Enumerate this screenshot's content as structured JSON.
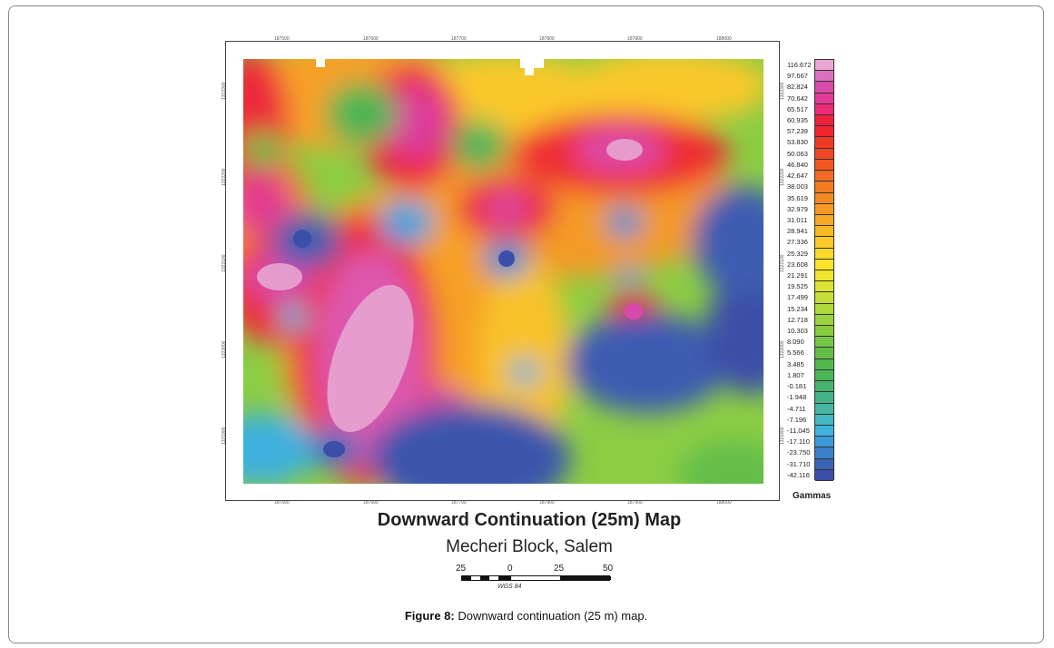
{
  "figure": {
    "title": "Downward Continuation (25m) Map",
    "subtitle": "Mecheri Block, Salem",
    "caption_label": "Figure 8:",
    "caption_text": " Downward continuation (25 m) map."
  },
  "legend": {
    "unit_label": "Gammas",
    "labels": [
      "116.672",
      "97.667",
      "82.824",
      "70.642",
      "65.517",
      "60.935",
      "57.239",
      "53.830",
      "50.063",
      "46.840",
      "42.647",
      "38.003",
      "35.619",
      "32.979",
      "31.011",
      "28.941",
      "27.336",
      "25.329",
      "23.608",
      "21.291",
      "19.525",
      "17.499",
      "15.234",
      "12.718",
      "10.303",
      "8.090",
      "5.566",
      "3.485",
      "1.807",
      "-0.181",
      "-1.948",
      "-4.711",
      "-7.196",
      "-11.045",
      "-17.110",
      "-23.750",
      "-31.710",
      "-42.116"
    ],
    "colors": [
      "#e8a6d2",
      "#de6fbe",
      "#d84aa9",
      "#e33a97",
      "#ee2a78",
      "#ef1f3e",
      "#ef2630",
      "#ef3a28",
      "#f04825",
      "#f25822",
      "#f46a22",
      "#f47a23",
      "#f58a24",
      "#f79a25",
      "#f8a825",
      "#f9b825",
      "#fbc826",
      "#fcd827",
      "#fbe32a",
      "#f0e42e",
      "#dbe233",
      "#c4dd38",
      "#aed83c",
      "#9ad23f",
      "#88cc42",
      "#76c546",
      "#63be49",
      "#53b84c",
      "#4ab558",
      "#47b46b",
      "#45b487",
      "#44b6a3",
      "#42b8c0",
      "#3db3e0",
      "#3a9ad7",
      "#3a7fc9",
      "#3c62b5",
      "#3b4fa8"
    ]
  },
  "axes": {
    "x_ticks_top": [
      "187500",
      "187600",
      "187700",
      "187800",
      "187900",
      "188000"
    ],
    "x_ticks_bottom": [
      "187500",
      "187600",
      "187700",
      "187800",
      "187900",
      "188000"
    ],
    "y_ticks_left": [
      "1322300",
      "1322200",
      "1322100",
      "1322000",
      "1321900"
    ],
    "y_ticks_right": [
      "1322300",
      "1322200",
      "1322100",
      "1322000",
      "1321900"
    ]
  },
  "scale": {
    "labels": [
      "25",
      "0",
      "25",
      "50"
    ],
    "datum": "WGS 84"
  }
}
